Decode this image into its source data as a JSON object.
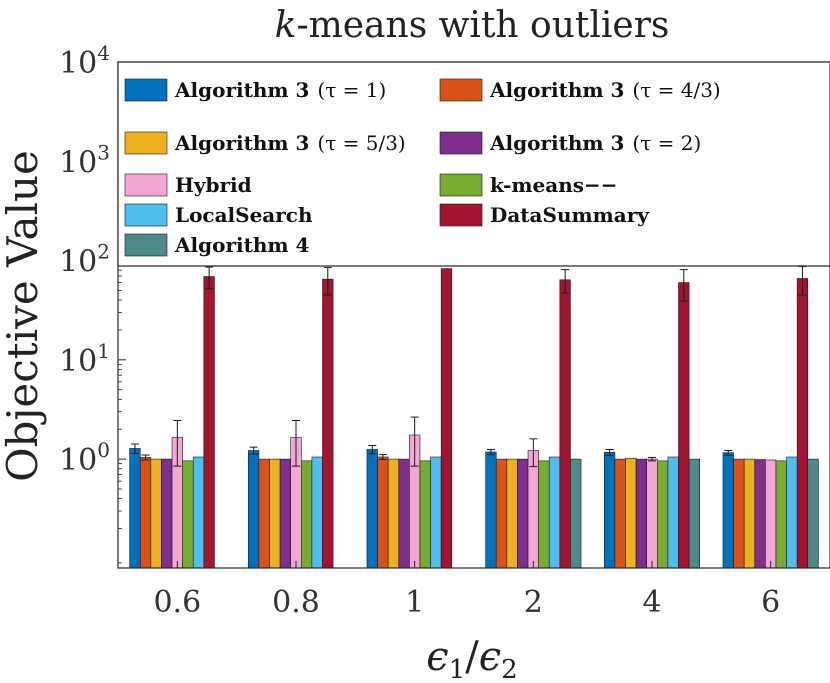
{
  "chart_data": {
    "type": "bar",
    "title": "k-means with outliers",
    "xlabel": "ϵ1/ϵ2",
    "ylabel": "Objective Value",
    "yscale": "log",
    "ylim": [
      0.08,
      10000
    ],
    "yticks": [
      {
        "value": 1,
        "label": "10⁰"
      },
      {
        "value": 10,
        "label": "10¹"
      },
      {
        "value": 100,
        "label": "10²"
      },
      {
        "value": 1000,
        "label": "10³"
      },
      {
        "value": 10000,
        "label": "10⁴"
      }
    ],
    "categories": [
      "0.6",
      "0.8",
      "1",
      "2",
      "4",
      "6"
    ],
    "series": [
      {
        "name": "Algorithm 3 (τ = 1)",
        "color": "#0072BD",
        "values": [
          1.28,
          1.22,
          1.25,
          1.18,
          1.17,
          1.16
        ],
        "err": [
          0.14,
          0.1,
          0.12,
          0.07,
          0.08,
          0.06
        ]
      },
      {
        "name": "Algorithm 3 (τ = 4/3)",
        "color": "#D95319",
        "values": [
          1.04,
          1.0,
          1.05,
          1.0,
          1.0,
          1.0
        ],
        "err": [
          0.06,
          0.0,
          0.06,
          0.0,
          0.0,
          0.0
        ]
      },
      {
        "name": "Algorithm 3 (τ = 5/3)",
        "color": "#EDB120",
        "values": [
          1.0,
          1.0,
          1.0,
          1.0,
          1.02,
          1.0
        ],
        "err": [
          0.0,
          0.0,
          0.0,
          0.0,
          0.0,
          0.0
        ]
      },
      {
        "name": "Algorithm 3 (τ = 2)",
        "color": "#7E2F8E",
        "values": [
          1.0,
          1.0,
          1.0,
          1.0,
          1.0,
          0.99
        ],
        "err": [
          0.0,
          0.0,
          0.0,
          0.0,
          0.0,
          0.0
        ]
      },
      {
        "name": "Hybrid",
        "color": "#F2A6D3",
        "values": [
          1.65,
          1.65,
          1.75,
          1.22,
          1.0,
          0.98
        ],
        "err": [
          0.8,
          0.8,
          0.9,
          0.38,
          0.04,
          0.0
        ]
      },
      {
        "name": "k-means−−",
        "color": "#77AC30",
        "values": [
          0.96,
          0.96,
          0.96,
          0.96,
          0.96,
          0.96
        ],
        "err": [
          0,
          0,
          0,
          0,
          0,
          0
        ]
      },
      {
        "name": "LocalSearch",
        "color": "#4DBEEE",
        "values": [
          1.05,
          1.05,
          1.05,
          1.05,
          1.05,
          1.05
        ],
        "err": [
          0,
          0,
          0,
          0,
          0,
          0
        ]
      },
      {
        "name": "DataSummary",
        "color": "#A2142F",
        "values": [
          69,
          65,
          83,
          64,
          60,
          66
        ],
        "err": [
          17,
          20,
          0,
          17,
          21,
          21
        ]
      },
      {
        "name": "Algorithm 4",
        "color": "#4F8888",
        "values": [
          0,
          0,
          0,
          1.0,
          1.0,
          1.0
        ],
        "err": [
          0,
          0,
          0,
          0,
          0,
          0
        ]
      }
    ],
    "legend": {
      "placement": "top",
      "items": [
        {
          "bold": "Algorithm 3",
          "rest": "(τ = 1)"
        },
        {
          "bold": "Algorithm 3",
          "rest": "(τ = 4/3)"
        },
        {
          "bold": "Algorithm 3",
          "rest": "(τ = 5/3)"
        },
        {
          "bold": "Algorithm 3",
          "rest": "(τ = 2)"
        },
        {
          "bold": "Hybrid",
          "rest": ""
        },
        {
          "bold": "k-means−−",
          "rest": ""
        },
        {
          "bold": "LocalSearch",
          "rest": ""
        },
        {
          "bold": "DataSummary",
          "rest": ""
        },
        {
          "bold": "Algorithm 4",
          "rest": ""
        }
      ]
    }
  }
}
